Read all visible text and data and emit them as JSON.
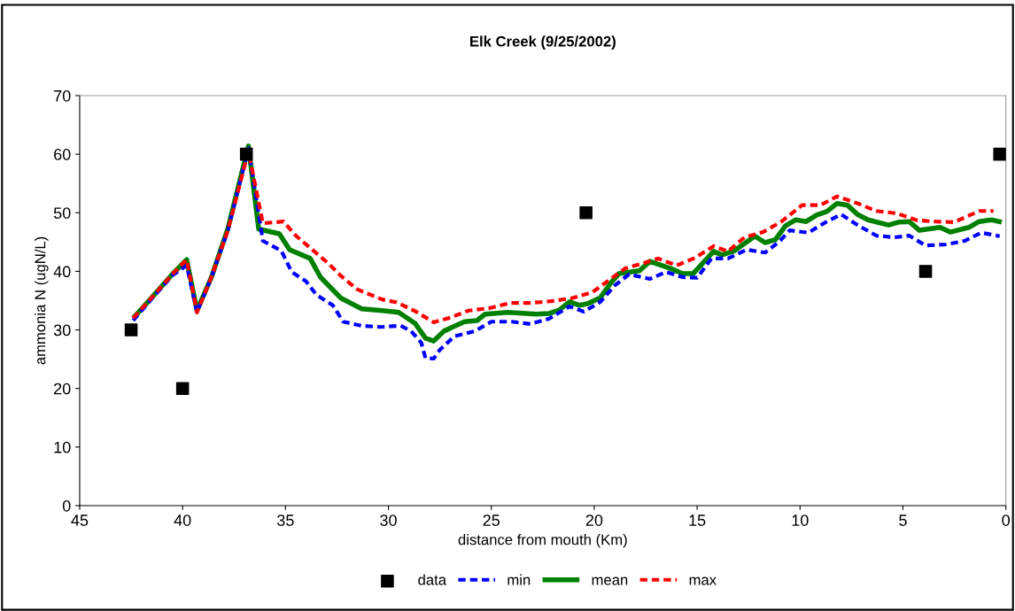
{
  "chart_data": {
    "type": "line",
    "title": "Elk Creek (9/25/2002)",
    "xlabel": "distance from mouth (Km)",
    "ylabel": "ammonia N (ugN/L)",
    "xlim": [
      45,
      0
    ],
    "xticks": [
      45,
      40,
      35,
      30,
      25,
      20,
      15,
      10,
      5,
      0
    ],
    "ylim": [
      0,
      70
    ],
    "yticks": [
      0,
      10,
      20,
      30,
      40,
      50,
      60,
      70
    ],
    "grid": false,
    "legend": "bottom",
    "series": [
      {
        "name": "data",
        "type": "scatter",
        "marker": "square",
        "color": "#000000",
        "x": [
          42.5,
          40,
          36.9,
          20.4,
          3.9,
          0.3
        ],
        "values": [
          30,
          20,
          60,
          50,
          40,
          60
        ]
      },
      {
        "name": "min",
        "line_style": "dashed",
        "color": "#0000ff",
        "x": [
          42.4,
          41.5,
          40.5,
          39.8,
          39.3,
          38.6,
          37.8,
          36.8,
          36.1,
          35.2,
          34.7,
          34.0,
          33.5,
          32.7,
          32.2,
          31.3,
          30.4,
          29.4,
          28.9,
          28.4,
          28.2,
          27.8,
          27.5,
          26.8,
          25.8,
          25.0,
          24.0,
          23.1,
          22.2,
          21.2,
          20.5,
          19.7,
          19.0,
          18.3,
          17.3,
          16.5,
          15.7,
          15.0,
          14.3,
          13.5,
          12.6,
          11.7,
          11.0,
          10.5,
          9.6,
          8.7,
          8.0,
          7.2,
          6.3,
          5.4,
          4.7,
          3.9,
          2.9,
          2.0,
          1.2,
          0.3
        ],
        "values": [
          31.6,
          35.3,
          39.3,
          41,
          33,
          39,
          47,
          61,
          45.2,
          43.5,
          39.9,
          38.3,
          36,
          34.2,
          31.4,
          30.7,
          30.5,
          30.7,
          29.8,
          27.8,
          25.2,
          25.1,
          26.6,
          28.9,
          29.8,
          31.4,
          31.4,
          31,
          31.9,
          34,
          33.1,
          34.8,
          37.6,
          39.5,
          38.7,
          39.9,
          39,
          38.9,
          42.2,
          42.2,
          43.7,
          43.2,
          45.1,
          47,
          46.6,
          48.5,
          49.7,
          47.9,
          46.1,
          45.8,
          46.1,
          44.4,
          44.6,
          45.2,
          46.6,
          46
        ]
      },
      {
        "name": "mean",
        "line_style": "solid",
        "color": "#008000",
        "x": [
          42.4,
          41.5,
          40.5,
          39.8,
          39.3,
          38.6,
          37.8,
          36.8,
          36.3,
          35.3,
          34.8,
          33.8,
          33.3,
          32.3,
          31.3,
          30.3,
          29.5,
          28.7,
          28.2,
          27.8,
          27.3,
          26.3,
          25.7,
          25.3,
          24.2,
          22.8,
          22.2,
          21.7,
          21.2,
          20.7,
          20.3,
          19.7,
          19.2,
          18.8,
          17.8,
          17.3,
          16.3,
          15.7,
          15.2,
          14.2,
          13.8,
          13.2,
          12.2,
          11.7,
          11.2,
          10.7,
          10.2,
          9.7,
          9.2,
          8.7,
          8.2,
          7.7,
          7.2,
          6.7,
          5.7,
          5.2,
          4.7,
          4.2,
          3.8,
          3.2,
          2.7,
          1.8,
          1.3,
          0.7,
          0.2
        ],
        "values": [
          32,
          35.5,
          39.5,
          42,
          33.3,
          39,
          47.3,
          61.4,
          47.2,
          46.4,
          43.7,
          42.2,
          39,
          35.4,
          33.6,
          33.3,
          33,
          31.1,
          28.6,
          28.1,
          29.8,
          31.4,
          31.6,
          32.7,
          33,
          32.7,
          32.8,
          33.4,
          34.8,
          34.2,
          34.5,
          35.5,
          38,
          39.6,
          40.1,
          41.7,
          40.5,
          39.6,
          39.6,
          43.4,
          42.8,
          43.5,
          46,
          44.9,
          45.4,
          47.8,
          48.8,
          48.5,
          49.6,
          50.2,
          51.6,
          51.3,
          49.7,
          48.8,
          47.9,
          48.4,
          48.5,
          47,
          47.2,
          47.5,
          46.7,
          47.5,
          48.5,
          48.8,
          48.4
        ]
      },
      {
        "name": "max",
        "line_style": "dashed",
        "color": "#ff0000",
        "x": [
          42.4,
          41.5,
          40.5,
          39.8,
          39.3,
          38.6,
          37.8,
          36.8,
          36.1,
          35.1,
          34.5,
          33.6,
          32.9,
          32.3,
          31.5,
          30.3,
          29.6,
          28.7,
          27.8,
          27.0,
          26.1,
          25.1,
          24.1,
          23.1,
          22.1,
          21.1,
          20.1,
          19.2,
          18.5,
          17.6,
          16.9,
          16.0,
          15.1,
          14.2,
          13.5,
          12.7,
          11.8,
          10.9,
          9.9,
          9.0,
          8.2,
          7.2,
          6.3,
          5.3,
          4.3,
          3.4,
          2.5,
          1.3,
          0.6
        ],
        "values": [
          32,
          35.5,
          39.5,
          42,
          33,
          39,
          47,
          60.5,
          48.2,
          48.5,
          46.1,
          43.4,
          41.3,
          39.2,
          36.9,
          35.2,
          34.7,
          33.2,
          31.3,
          32.1,
          33.3,
          33.7,
          34.6,
          34.6,
          34.9,
          35.4,
          36.4,
          38.7,
          40.5,
          41.4,
          42.2,
          41,
          42.3,
          44.3,
          43.4,
          45.8,
          46.7,
          48.5,
          51.3,
          51.3,
          52.8,
          51.6,
          50.3,
          49.9,
          48.7,
          48.5,
          48.4,
          50.3,
          50.3
        ]
      }
    ]
  }
}
